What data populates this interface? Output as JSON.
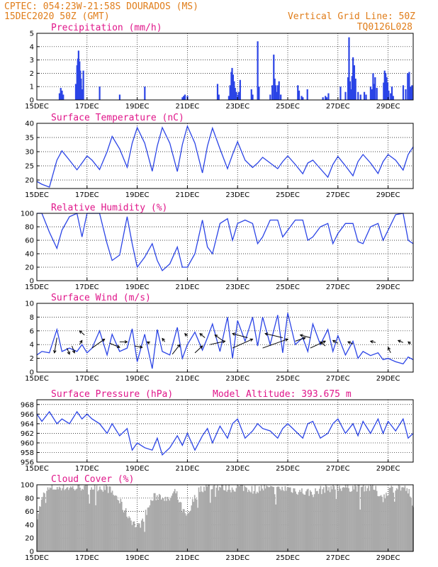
{
  "header": {
    "line1": "CPTEC:  054:23W-21:58S  DOURADOS (MS)",
    "line2": "15DEC2020 50Z (GMT)",
    "grid_note": "Vertical Grid Line: 50Z",
    "code": "TQ0126L028"
  },
  "colors": {
    "header": "#e07d1a",
    "title": "#e0168a",
    "series": "#2b44e6",
    "cloud": "#a9a9a9"
  },
  "x_ticks": [
    "15DEC",
    "17DEC",
    "19DEC",
    "21DEC",
    "23DEC",
    "25DEC",
    "27DEC",
    "29DEC"
  ],
  "chart_data": [
    {
      "id": "precip",
      "type": "bar",
      "title": "Precipitation (mm/h)",
      "ylim": [
        0,
        5
      ],
      "yticks": [
        "0",
        "1",
        "2",
        "3",
        "4",
        "5"
      ],
      "x_range_days": [
        15,
        30
      ],
      "values": [
        [
          15.9,
          0.5
        ],
        [
          15.95,
          0.9
        ],
        [
          16.0,
          0.7
        ],
        [
          16.05,
          0.4
        ],
        [
          16.55,
          1.2
        ],
        [
          16.6,
          2.6
        ],
        [
          16.63,
          3.1
        ],
        [
          16.66,
          3.7
        ],
        [
          16.7,
          2.9
        ],
        [
          16.73,
          2.2
        ],
        [
          16.76,
          1.6
        ],
        [
          16.8,
          0.8
        ],
        [
          16.85,
          2.2
        ],
        [
          17.5,
          1.0
        ],
        [
          18.3,
          0.4
        ],
        [
          19.3,
          1.0
        ],
        [
          20.8,
          0.2
        ],
        [
          20.85,
          0.3
        ],
        [
          20.9,
          0.4
        ],
        [
          21.0,
          0.3
        ],
        [
          22.2,
          1.2
        ],
        [
          22.25,
          0.4
        ],
        [
          22.65,
          0.3
        ],
        [
          22.7,
          1.1
        ],
        [
          22.75,
          2.1
        ],
        [
          22.78,
          2.4
        ],
        [
          22.82,
          1.9
        ],
        [
          22.86,
          1.4
        ],
        [
          22.9,
          0.9
        ],
        [
          22.95,
          0.6
        ],
        [
          23.02,
          0.4
        ],
        [
          23.05,
          0.6
        ],
        [
          23.1,
          1.5
        ],
        [
          23.55,
          0.8
        ],
        [
          23.6,
          0.4
        ],
        [
          23.8,
          4.4
        ],
        [
          23.85,
          1.0
        ],
        [
          24.3,
          0.4
        ],
        [
          24.38,
          1.1
        ],
        [
          24.44,
          3.4
        ],
        [
          24.48,
          1.6
        ],
        [
          24.52,
          1.1
        ],
        [
          24.56,
          0.6
        ],
        [
          24.6,
          1.1
        ],
        [
          24.65,
          1.4
        ],
        [
          24.72,
          0.4
        ],
        [
          25.4,
          1.1
        ],
        [
          25.45,
          0.7
        ],
        [
          25.55,
          0.3
        ],
        [
          25.6,
          0.2
        ],
        [
          25.78,
          0.8
        ],
        [
          26.4,
          0.2
        ],
        [
          26.5,
          0.3
        ],
        [
          26.55,
          0.2
        ],
        [
          26.62,
          0.5
        ],
        [
          27.1,
          1.0
        ],
        [
          27.3,
          0.6
        ],
        [
          27.4,
          1.7
        ],
        [
          27.44,
          4.7
        ],
        [
          27.48,
          1.4
        ],
        [
          27.52,
          0.8
        ],
        [
          27.56,
          1.8
        ],
        [
          27.6,
          3.2
        ],
        [
          27.65,
          2.6
        ],
        [
          27.7,
          1.6
        ],
        [
          27.8,
          0.6
        ],
        [
          27.9,
          0.4
        ],
        [
          28.05,
          0.6
        ],
        [
          28.12,
          0.4
        ],
        [
          28.3,
          1.0
        ],
        [
          28.35,
          0.8
        ],
        [
          28.4,
          2.0
        ],
        [
          28.44,
          1.2
        ],
        [
          28.48,
          1.7
        ],
        [
          28.55,
          0.9
        ],
        [
          28.82,
          1.3
        ],
        [
          28.86,
          2.2
        ],
        [
          28.9,
          2.0
        ],
        [
          28.94,
          1.7
        ],
        [
          28.98,
          1.3
        ],
        [
          29.02,
          0.7
        ],
        [
          29.1,
          0.5
        ],
        [
          29.15,
          1.0
        ],
        [
          29.2,
          0.3
        ],
        [
          29.6,
          1.1
        ],
        [
          29.7,
          0.8
        ],
        [
          29.78,
          2.0
        ],
        [
          29.84,
          2.1
        ],
        [
          29.9,
          1.0
        ],
        [
          29.95,
          1.1
        ]
      ]
    },
    {
      "id": "temp",
      "type": "line",
      "title": "Surface Temperature (nC)",
      "ylim": [
        17,
        40
      ],
      "yticks": [
        "20",
        "25",
        "30",
        "35",
        "40"
      ],
      "ytick_values": [
        20,
        25,
        30,
        35,
        40
      ],
      "x": [
        15.0,
        15.2,
        15.5,
        15.8,
        16.0,
        16.3,
        16.6,
        16.8,
        17.0,
        17.2,
        17.5,
        17.8,
        18.0,
        18.3,
        18.6,
        18.8,
        19.0,
        19.3,
        19.6,
        19.8,
        20.0,
        20.3,
        20.6,
        20.8,
        21.0,
        21.3,
        21.6,
        21.8,
        22.0,
        22.3,
        22.6,
        22.8,
        23.0,
        23.3,
        23.6,
        23.8,
        24.0,
        24.3,
        24.6,
        24.8,
        25.0,
        25.3,
        25.6,
        25.8,
        26.0,
        26.3,
        26.6,
        26.8,
        27.0,
        27.3,
        27.6,
        27.8,
        28.0,
        28.3,
        28.6,
        28.8,
        29.0,
        29.3,
        29.6,
        29.8,
        30.0
      ],
      "values": [
        19.5,
        18.5,
        17.5,
        27.0,
        30.3,
        27.0,
        23.6,
        26.0,
        28.5,
        27.0,
        23.7,
        30.0,
        35.4,
        31.0,
        24.5,
        33.0,
        38.5,
        33.0,
        23.1,
        32.0,
        38.5,
        33.0,
        23.0,
        32.5,
        39.0,
        33.0,
        22.5,
        32.0,
        38.3,
        31.0,
        24.0,
        29.0,
        33.5,
        27.0,
        24.4,
        26.0,
        28.0,
        26.0,
        24.0,
        26.5,
        28.5,
        25.5,
        22.2,
        26.0,
        27.0,
        24.0,
        21.0,
        25.5,
        28.3,
        25.0,
        21.5,
        26.5,
        29.0,
        26.0,
        22.3,
        26.5,
        29.0,
        27.0,
        23.5,
        29.0,
        31.7
      ]
    },
    {
      "id": "rh",
      "type": "line",
      "title": "Relative Humidity (%)",
      "ylim": [
        0,
        100
      ],
      "yticks": [
        "0",
        "20",
        "40",
        "60",
        "80",
        "100"
      ],
      "ytick_values": [
        0,
        20,
        40,
        60,
        80,
        100
      ],
      "x": [
        15.0,
        15.2,
        15.5,
        15.8,
        16.0,
        16.3,
        16.6,
        16.8,
        17.0,
        17.2,
        17.5,
        17.8,
        18.0,
        18.3,
        18.6,
        18.8,
        19.0,
        19.3,
        19.6,
        19.8,
        20.0,
        20.3,
        20.6,
        20.8,
        21.0,
        21.3,
        21.6,
        21.8,
        22.0,
        22.3,
        22.6,
        22.8,
        23.0,
        23.3,
        23.6,
        23.8,
        24.0,
        24.3,
        24.6,
        24.8,
        25.0,
        25.3,
        25.6,
        25.8,
        26.0,
        26.3,
        26.6,
        26.8,
        27.0,
        27.3,
        27.6,
        27.8,
        28.0,
        28.3,
        28.6,
        28.8,
        29.0,
        29.3,
        29.6,
        29.8,
        30.0
      ],
      "values": [
        100,
        100,
        72,
        48,
        75,
        95,
        100,
        65,
        100,
        100,
        100,
        55,
        30,
        38,
        95,
        55,
        20,
        35,
        55,
        30,
        15,
        25,
        50,
        20,
        20,
        40,
        90,
        50,
        40,
        85,
        92,
        60,
        85,
        90,
        85,
        55,
        65,
        90,
        90,
        65,
        75,
        90,
        90,
        60,
        65,
        80,
        85,
        55,
        70,
        85,
        85,
        58,
        55,
        80,
        85,
        60,
        75,
        98,
        100,
        60,
        55
      ]
    },
    {
      "id": "wind",
      "type": "line",
      "title": "Surface Wind (m/s)",
      "ylim": [
        0,
        10
      ],
      "yticks": [
        "0",
        "2",
        "4",
        "6",
        "8",
        "10"
      ],
      "ytick_values": [
        0,
        2,
        4,
        6,
        8,
        10
      ],
      "x": [
        15.0,
        15.2,
        15.5,
        15.8,
        16.0,
        16.3,
        16.6,
        16.8,
        17.0,
        17.2,
        17.5,
        17.8,
        18.0,
        18.3,
        18.6,
        18.8,
        19.0,
        19.3,
        19.6,
        19.8,
        20.0,
        20.3,
        20.6,
        20.8,
        21.0,
        21.3,
        21.6,
        21.8,
        22.0,
        22.3,
        22.6,
        22.8,
        23.0,
        23.3,
        23.6,
        23.8,
        24.0,
        24.3,
        24.6,
        24.8,
        25.0,
        25.3,
        25.6,
        25.8,
        26.0,
        26.3,
        26.6,
        26.8,
        27.0,
        27.3,
        27.6,
        27.8,
        28.0,
        28.3,
        28.6,
        28.8,
        29.0,
        29.3,
        29.6,
        29.8,
        30.0
      ],
      "values": [
        2.5,
        3.0,
        2.8,
        6.2,
        3.0,
        3.5,
        3.0,
        4.0,
        2.8,
        3.5,
        6.0,
        2.5,
        5.5,
        3.0,
        3.5,
        6.3,
        1.5,
        5.5,
        0.5,
        6.2,
        3.0,
        2.5,
        6.5,
        2.0,
        4.0,
        5.8,
        3.2,
        5.0,
        7.0,
        3.0,
        8.0,
        2.0,
        7.5,
        4.5,
        8.0,
        3.8,
        8.0,
        4.0,
        8.3,
        2.8,
        8.6,
        4.0,
        5.0,
        3.0,
        7.0,
        4.0,
        6.2,
        3.0,
        5.3,
        2.5,
        4.5,
        2.0,
        3.0,
        2.4,
        2.8,
        1.8,
        2.0,
        1.5,
        1.2,
        2.2,
        1.8
      ]
    },
    {
      "id": "press",
      "type": "line",
      "title": "Surface Pressure (hPa)",
      "annotation": "Model Altitude: 393.675 m",
      "ylim": [
        956,
        969
      ],
      "yticks": [
        "956",
        "958",
        "960",
        "962",
        "964",
        "966",
        "968"
      ],
      "ytick_values": [
        956,
        958,
        960,
        962,
        964,
        966,
        968
      ],
      "x": [
        15.0,
        15.2,
        15.5,
        15.8,
        16.0,
        16.3,
        16.6,
        16.8,
        17.0,
        17.2,
        17.5,
        17.8,
        18.0,
        18.3,
        18.6,
        18.8,
        19.0,
        19.3,
        19.6,
        19.8,
        20.0,
        20.3,
        20.6,
        20.8,
        21.0,
        21.3,
        21.6,
        21.8,
        22.0,
        22.3,
        22.6,
        22.8,
        23.0,
        23.3,
        23.6,
        23.8,
        24.0,
        24.3,
        24.6,
        24.8,
        25.0,
        25.3,
        25.6,
        25.8,
        26.0,
        26.3,
        26.6,
        26.8,
        27.0,
        27.3,
        27.6,
        27.8,
        28.0,
        28.3,
        28.6,
        28.8,
        29.0,
        29.3,
        29.6,
        29.8,
        30.0
      ],
      "values": [
        966.0,
        964.5,
        966.5,
        964.0,
        965.0,
        964.0,
        966.5,
        965.0,
        966.0,
        965.0,
        964.0,
        962.0,
        964.0,
        961.5,
        963.0,
        958.5,
        960.0,
        959.0,
        958.5,
        961.0,
        957.5,
        959.0,
        961.5,
        959.5,
        962.0,
        958.5,
        961.5,
        963.0,
        960.0,
        963.5,
        961.0,
        964.0,
        965.0,
        961.0,
        962.5,
        964.0,
        963.0,
        962.5,
        961.0,
        963.0,
        964.0,
        962.5,
        961.0,
        964.0,
        964.5,
        961.0,
        962.0,
        964.0,
        965.0,
        962.0,
        964.0,
        961.5,
        964.5,
        962.0,
        965.0,
        962.0,
        964.5,
        962.5,
        965.0,
        961.0,
        962.0
      ]
    },
    {
      "id": "cloud",
      "type": "bar",
      "title": "Cloud Cover (%)",
      "ylim": [
        0,
        100
      ],
      "yticks": [
        "0",
        "20",
        "40",
        "60",
        "80",
        "100"
      ],
      "profile": [
        [
          15.0,
          55
        ],
        [
          15.3,
          90
        ],
        [
          15.6,
          95
        ],
        [
          16.0,
          97
        ],
        [
          16.5,
          95
        ],
        [
          16.8,
          98
        ],
        [
          17.0,
          96
        ],
        [
          17.4,
          97
        ],
        [
          17.8,
          95
        ],
        [
          18.2,
          80
        ],
        [
          18.5,
          60
        ],
        [
          18.8,
          45
        ],
        [
          19.0,
          35
        ],
        [
          19.3,
          55
        ],
        [
          19.6,
          80
        ],
        [
          19.9,
          85
        ],
        [
          20.2,
          75
        ],
        [
          20.5,
          90
        ],
        [
          20.8,
          60
        ],
        [
          21.0,
          50
        ],
        [
          21.2,
          75
        ],
        [
          21.5,
          95
        ],
        [
          21.8,
          97
        ],
        [
          22.3,
          97
        ],
        [
          22.8,
          95
        ],
        [
          23.2,
          97
        ],
        [
          23.6,
          93
        ],
        [
          24.0,
          95
        ],
        [
          24.5,
          92
        ],
        [
          25.0,
          95
        ],
        [
          25.5,
          90
        ],
        [
          26.0,
          88
        ],
        [
          26.5,
          95
        ],
        [
          27.0,
          97
        ],
        [
          27.5,
          96
        ],
        [
          28.0,
          97
        ],
        [
          28.4,
          95
        ],
        [
          28.8,
          80
        ],
        [
          29.0,
          92
        ],
        [
          29.3,
          97
        ],
        [
          29.6,
          95
        ],
        [
          29.8,
          90
        ],
        [
          30.0,
          60
        ]
      ]
    }
  ]
}
